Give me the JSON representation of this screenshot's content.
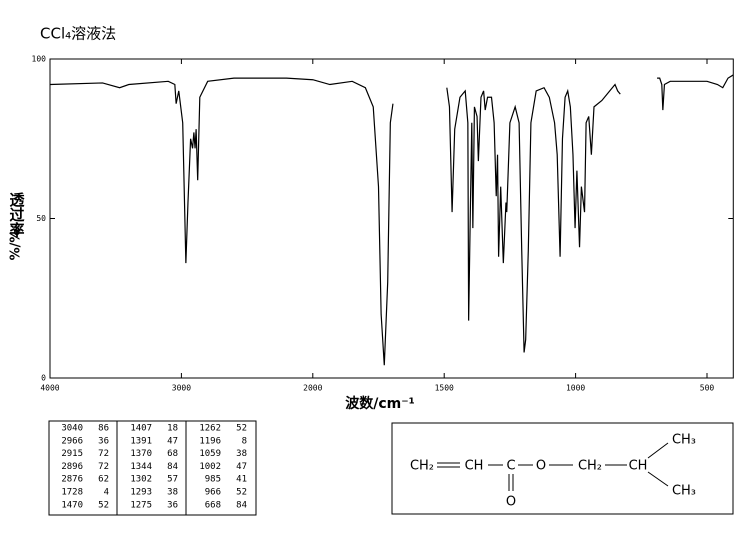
{
  "chart_data": {
    "type": "line",
    "title": "CCl₄溶液法",
    "xlabel": "波数/cm⁻¹",
    "ylabel": "透过率",
    "ylabel_unit": "%/%",
    "xlim": [
      4000,
      400
    ],
    "ylim": [
      0,
      100
    ],
    "xticks": [
      4000,
      3000,
      2000,
      1500,
      1000,
      500
    ],
    "yticks": [
      0,
      50,
      100
    ],
    "x_scale": "piecewise-linear-between-ticks",
    "series": [
      {
        "color": "#000000",
        "x": [
          4000,
          3600,
          3470,
          3400,
          3100,
          3050,
          3040,
          3020,
          2990,
          2966,
          2950,
          2930,
          2915,
          2905,
          2896,
          2888,
          2876,
          2860,
          2800,
          2600,
          2200,
          2000,
          1935,
          1850,
          1800,
          1770,
          1750,
          1740,
          1728,
          1715,
          1705,
          1695,
          1600,
          1490,
          1480,
          1470,
          1460,
          1440,
          1420,
          1410,
          1407,
          1400,
          1395,
          1391,
          1385,
          1375,
          1370,
          1360,
          1350,
          1344,
          1335,
          1320,
          1310,
          1302,
          1297,
          1293,
          1285,
          1275,
          1265,
          1262,
          1250,
          1230,
          1215,
          1205,
          1196,
          1190,
          1180,
          1170,
          1150,
          1120,
          1100,
          1080,
          1070,
          1059,
          1050,
          1040,
          1030,
          1020,
          1010,
          1002,
          995,
          985,
          978,
          966,
          960,
          950,
          940,
          930,
          900,
          870,
          850,
          840,
          830,
          750,
          690,
          680,
          672,
          668,
          662,
          640,
          500,
          460,
          440,
          420,
          400
        ],
        "values": [
          92,
          92.5,
          91,
          92,
          93,
          92,
          86,
          90,
          80,
          36,
          55,
          75,
          72,
          77,
          72,
          78,
          62,
          88,
          93,
          94,
          94,
          93.5,
          92,
          93,
          91,
          85,
          60,
          20,
          4,
          30,
          80,
          86,
          null,
          91,
          85,
          52,
          78,
          88,
          90,
          80,
          18,
          55,
          80,
          47,
          85,
          82,
          68,
          88,
          90,
          84,
          88,
          88,
          80,
          57,
          70,
          38,
          60,
          36,
          55,
          52,
          80,
          85,
          80,
          40,
          8,
          12,
          40,
          80,
          90,
          91,
          88,
          80,
          70,
          38,
          75,
          88,
          90,
          85,
          70,
          47,
          65,
          41,
          60,
          52,
          80,
          82,
          70,
          85,
          87,
          90,
          92,
          90,
          89,
          null,
          94,
          94,
          92,
          84,
          92,
          93,
          93,
          92,
          91,
          94,
          95
        ]
      }
    ],
    "peaks": [
      [
        3040,
        86
      ],
      [
        2966,
        36
      ],
      [
        2915,
        72
      ],
      [
        2896,
        72
      ],
      [
        2876,
        62
      ],
      [
        1728,
        4
      ],
      [
        1470,
        52
      ],
      [
        1407,
        18
      ],
      [
        1391,
        47
      ],
      [
        1370,
        68
      ],
      [
        1344,
        84
      ],
      [
        1302,
        57
      ],
      [
        1293,
        38
      ],
      [
        1275,
        36
      ],
      [
        1262,
        52
      ],
      [
        1196,
        8
      ],
      [
        1059,
        38
      ],
      [
        1002,
        47
      ],
      [
        985,
        41
      ],
      [
        966,
        52
      ],
      [
        668,
        84
      ]
    ]
  },
  "structure": {
    "atoms": [
      "CH₂",
      "CH",
      "C",
      "O",
      "CH₂",
      "CH",
      "CH₃",
      "CH₃",
      "O"
    ]
  }
}
